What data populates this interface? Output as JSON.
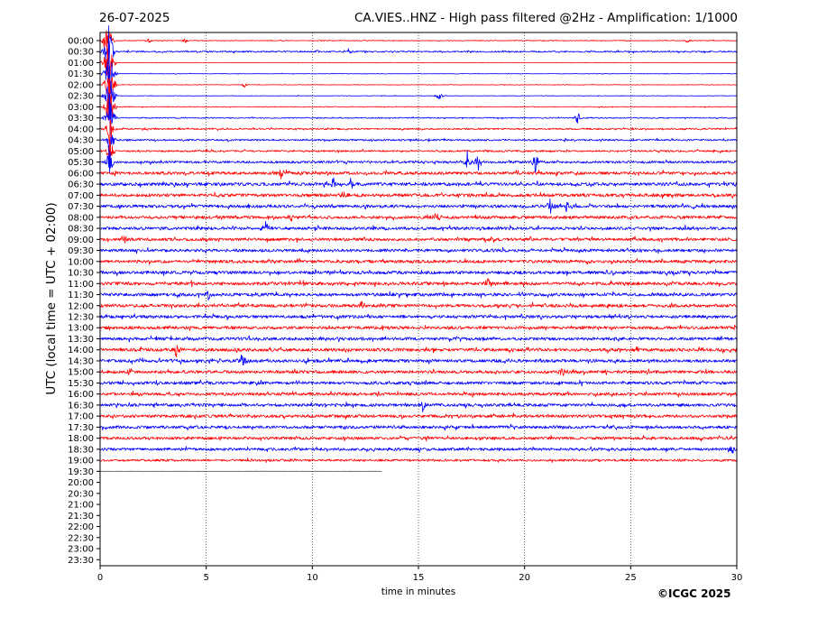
{
  "header": {
    "date": "26-07-2025",
    "title": "CA.VIES..HNZ - High pass filtered @2Hz - Amplification: 1/1000"
  },
  "footer": {
    "copyright": "©ICGC 2025"
  },
  "chart_data": {
    "type": "line",
    "title": "CA.VIES..HNZ - High pass filtered @2Hz - Amplification: 1/1000",
    "xlabel": "time in minutes",
    "ylabel": "UTC (local time = UTC + 02:00)",
    "xlim": [
      0,
      30
    ],
    "x_ticks": [
      0,
      5,
      10,
      15,
      20,
      25,
      30
    ],
    "grid": "vertical dotted lines at x ticks",
    "row_labels": [
      "00:00",
      "00:30",
      "01:00",
      "01:30",
      "02:00",
      "02:30",
      "03:00",
      "03:30",
      "04:00",
      "04:30",
      "05:00",
      "05:30",
      "06:00",
      "06:30",
      "07:00",
      "07:30",
      "08:00",
      "08:30",
      "09:00",
      "09:30",
      "10:00",
      "10:30",
      "11:00",
      "11:30",
      "12:00",
      "12:30",
      "13:00",
      "13:30",
      "14:00",
      "14:30",
      "15:00",
      "15:30",
      "16:00",
      "16:30",
      "17:00",
      "17:30",
      "18:00",
      "18:30",
      "19:00",
      "19:30",
      "20:00",
      "20:30",
      "21:00",
      "21:30",
      "22:00",
      "22:30",
      "23:00",
      "23:30"
    ],
    "trace_colors": [
      "#ff0000",
      "#0000ff"
    ],
    "last_trace_color": "#555555",
    "rows_with_data": 40,
    "last_row_end_minute": 13.3,
    "row_noise_level": [
      0.4,
      0.8,
      0.2,
      0.3,
      0.3,
      0.3,
      0.4,
      0.6,
      0.8,
      0.9,
      1.0,
      1.3,
      1.6,
      1.7,
      1.7,
      1.6,
      1.6,
      1.6,
      1.6,
      1.6,
      1.6,
      1.7,
      1.7,
      1.7,
      1.7,
      1.6,
      1.6,
      1.6,
      1.7,
      1.7,
      1.6,
      1.6,
      1.6,
      1.6,
      1.6,
      1.6,
      1.5,
      1.5,
      1.2,
      0.2
    ],
    "events": [
      {
        "row": 0,
        "minute": 0.35,
        "amp": 30
      },
      {
        "row": 1,
        "minute": 0.4,
        "amp": 45
      },
      {
        "row": 2,
        "minute": 0.4,
        "amp": 45
      },
      {
        "row": 3,
        "minute": 0.45,
        "amp": 40
      },
      {
        "row": 4,
        "minute": 0.45,
        "amp": 40
      },
      {
        "row": 5,
        "minute": 0.45,
        "amp": 38
      },
      {
        "row": 6,
        "minute": 0.45,
        "amp": 35
      },
      {
        "row": 7,
        "minute": 0.45,
        "amp": 25
      },
      {
        "row": 8,
        "minute": 0.45,
        "amp": 22
      },
      {
        "row": 9,
        "minute": 0.45,
        "amp": 20
      },
      {
        "row": 10,
        "minute": 0.45,
        "amp": 20
      },
      {
        "row": 11,
        "minute": 0.45,
        "amp": 18
      },
      {
        "row": 0,
        "minute": 2.3,
        "amp": 3
      },
      {
        "row": 0,
        "minute": 4.0,
        "amp": 3
      },
      {
        "row": 0,
        "minute": 27.7,
        "amp": 3
      },
      {
        "row": 1,
        "minute": 10.2,
        "amp": 3
      },
      {
        "row": 1,
        "minute": 11.7,
        "amp": 3
      },
      {
        "row": 4,
        "minute": 6.8,
        "amp": 3
      },
      {
        "row": 5,
        "minute": 16.0,
        "amp": 6
      },
      {
        "row": 7,
        "minute": 0.6,
        "amp": 8
      },
      {
        "row": 7,
        "minute": 22.5,
        "amp": 7
      },
      {
        "row": 11,
        "minute": 17.3,
        "amp": 12
      },
      {
        "row": 11,
        "minute": 17.8,
        "amp": 10
      },
      {
        "row": 11,
        "minute": 20.5,
        "amp": 12
      },
      {
        "row": 12,
        "minute": 8.5,
        "amp": 8
      },
      {
        "row": 13,
        "minute": 11.0,
        "amp": 9
      },
      {
        "row": 13,
        "minute": 11.8,
        "amp": 8
      },
      {
        "row": 14,
        "minute": 11.5,
        "amp": 9
      },
      {
        "row": 15,
        "minute": 21.2,
        "amp": 9
      },
      {
        "row": 15,
        "minute": 22.0,
        "amp": 9
      },
      {
        "row": 16,
        "minute": 9.0,
        "amp": 7
      },
      {
        "row": 16,
        "minute": 15.9,
        "amp": 9
      },
      {
        "row": 17,
        "minute": 7.8,
        "amp": 8
      },
      {
        "row": 18,
        "minute": 1.1,
        "amp": 7
      },
      {
        "row": 22,
        "minute": 18.3,
        "amp": 8
      },
      {
        "row": 23,
        "minute": 5.1,
        "amp": 7
      },
      {
        "row": 24,
        "minute": 12.3,
        "amp": 6
      },
      {
        "row": 28,
        "minute": 3.6,
        "amp": 10
      },
      {
        "row": 29,
        "minute": 6.7,
        "amp": 10
      },
      {
        "row": 30,
        "minute": 21.8,
        "amp": 6
      },
      {
        "row": 33,
        "minute": 15.2,
        "amp": 9
      },
      {
        "row": 37,
        "minute": 29.8,
        "amp": 6
      }
    ]
  }
}
